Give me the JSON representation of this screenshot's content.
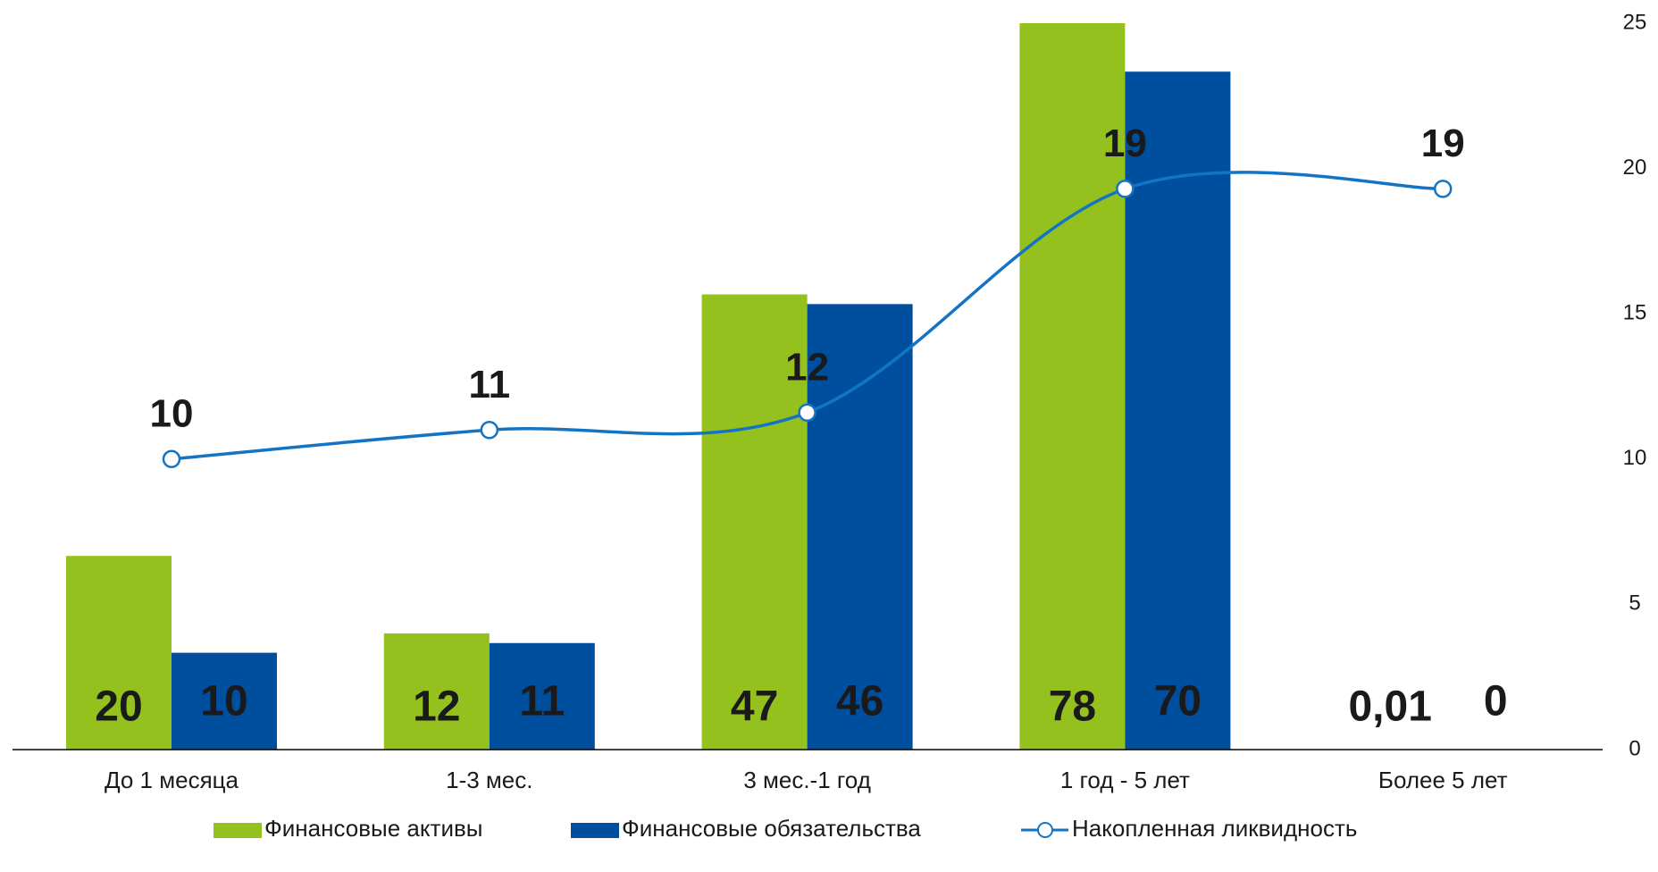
{
  "chart_data": {
    "type": "bar",
    "categories": [
      "До 1 месяца",
      "1-3 мес.",
      "3 мес.-1 год",
      "1 год - 5 лет",
      "Более 5 лет"
    ],
    "series": [
      {
        "name": "Финансовые активы",
        "color": "#95c11f",
        "values": [
          20,
          12,
          47,
          78,
          0.01
        ],
        "value_labels": [
          "20",
          "12",
          "47",
          "78",
          "0,01"
        ]
      },
      {
        "name": "Финансовые обязательства",
        "color": "#004f9f",
        "values": [
          10,
          11,
          46,
          70,
          0
        ]
      },
      {
        "name": "Накопленная ликвидность",
        "type": "line",
        "axis": "y2",
        "color": "#1474c4",
        "values": [
          10,
          11,
          11.6,
          19.3,
          19.3
        ],
        "value_labels": [
          "10",
          "11",
          "12",
          "19",
          "19"
        ]
      }
    ],
    "ylim": [
      0,
      75
    ],
    "y2lim": [
      0,
      25
    ],
    "y2ticks": [
      0,
      5,
      10,
      15,
      20,
      25
    ],
    "legend": "bottom"
  }
}
